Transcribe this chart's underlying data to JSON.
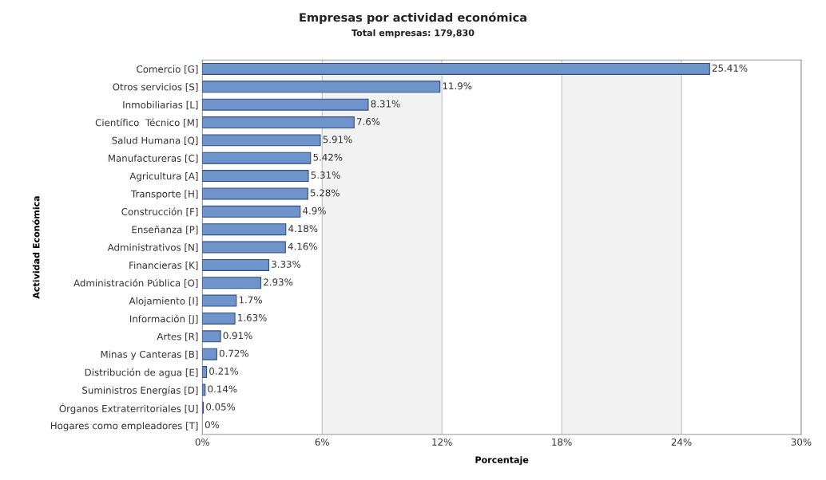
{
  "chart_data": {
    "type": "bar",
    "orientation": "horizontal",
    "title": "Empresas por actividad económica",
    "subtitle": "Total empresas: 179,830",
    "xlabel": "Porcentaje",
    "ylabel": "Actividad Económica",
    "categories": [
      "Comercio [G]",
      "Otros servicios [S]",
      "Inmobiliarias [L]",
      "Científico  Técnico [M]",
      "Salud Humana [Q]",
      "Manufactureras [C]",
      "Agricultura [A]",
      "Transporte [H]",
      "Construcción [F]",
      "Enseñanza [P]",
      "Administrativos [N]",
      "Financieras [K]",
      "Administración Pública [O]",
      "Alojamiento [I]",
      "Información [J]",
      "Artes [R]",
      "Minas y Canteras [B]",
      "Distribución de agua [E]",
      "Suministros Energías [D]",
      "Órganos Extraterritoriales [U]",
      "Hogares como empleadores [T]"
    ],
    "values": [
      25.41,
      11.9,
      8.31,
      7.6,
      5.91,
      5.42,
      5.31,
      5.28,
      4.9,
      4.18,
      4.16,
      3.33,
      2.93,
      1.7,
      1.63,
      0.91,
      0.72,
      0.21,
      0.14,
      0.05,
      0
    ],
    "value_labels": [
      "25.41%",
      "11.9%",
      "8.31%",
      "7.6%",
      "5.91%",
      "5.42%",
      "5.31%",
      "5.28%",
      "4.9%",
      "4.18%",
      "4.16%",
      "3.33%",
      "2.93%",
      "1.7%",
      "1.63%",
      "0.91%",
      "0.72%",
      "0.21%",
      "0.14%",
      "0.05%",
      "0%"
    ],
    "color": "#6f93cb",
    "xlim": [
      0,
      30
    ],
    "xticks": [
      {
        "value": 0,
        "label": "0%"
      },
      {
        "value": 6,
        "label": "6%"
      },
      {
        "value": 12,
        "label": "12%"
      },
      {
        "value": 18,
        "label": "18%"
      },
      {
        "value": 24,
        "label": "24%"
      },
      {
        "value": 30,
        "label": "30%"
      }
    ],
    "bands": [
      {
        "axis": "x",
        "from": 6,
        "to": 12,
        "color": "#f2f2f2"
      },
      {
        "axis": "x",
        "from": 18,
        "to": 24,
        "color": "#f2f2f2"
      }
    ],
    "grid": "x",
    "legend": false
  }
}
